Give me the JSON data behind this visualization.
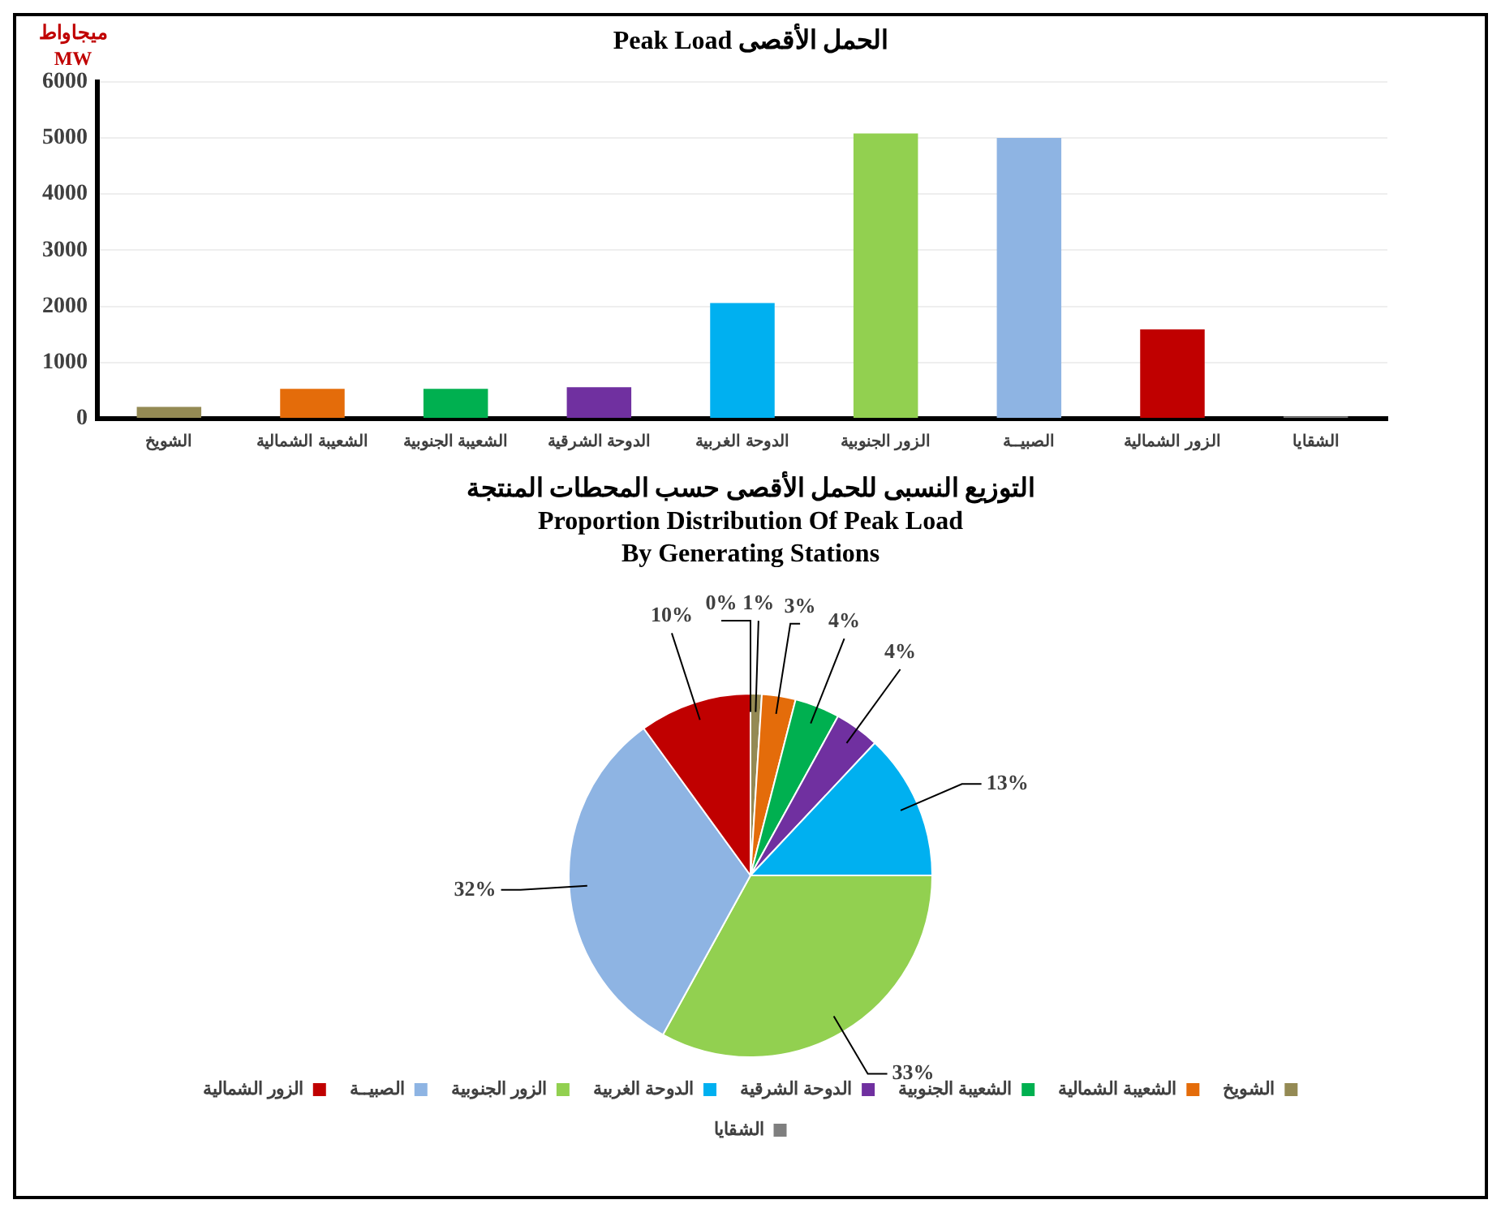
{
  "chart_data": [
    {
      "type": "bar",
      "title": "الحمل الأقصى   Peak Load",
      "ylabel": "ميجاواط MW",
      "categories": [
        "الشويخ",
        "الشعيبة الشمالية",
        "الشعيبة الجنوبية",
        "الدوحة الشرقية",
        "الدوحة الغربية",
        "الزور الجنوبية",
        "الصبيــة",
        "الزور الشمالية",
        "الشقايا"
      ],
      "values": [
        210,
        530,
        530,
        560,
        2060,
        5080,
        5000,
        1590,
        40
      ],
      "colors": [
        "#948a54",
        "#e46c0a",
        "#00b050",
        "#7030a0",
        "#00b0f0",
        "#92d050",
        "#8eb4e3",
        "#c00000",
        "#7f7f7f"
      ],
      "ylim": [
        0,
        6000
      ],
      "yticks": [
        0,
        1000,
        2000,
        3000,
        4000,
        5000,
        6000
      ],
      "grid": "y",
      "legend": false
    },
    {
      "type": "pie",
      "title": "التوزيع النسبى للحمل الأقصى حسب المحطات المنتجة\nProportion Distribution Of Peak Load\nBy Generating Stations",
      "categories": [
        "الشويخ",
        "الشعيبة الشمالية",
        "الشعيبة الجنوبية",
        "الدوحة الشرقية",
        "الدوحة الغربية",
        "الزور الجنوبية",
        "الصبيــة",
        "الزور الشمالية",
        "الشقايا"
      ],
      "values": [
        1,
        3,
        4,
        4,
        13,
        33,
        32,
        10,
        0
      ],
      "colors": [
        "#948a54",
        "#e46c0a",
        "#00b050",
        "#7030a0",
        "#00b0f0",
        "#92d050",
        "#8eb4e3",
        "#c00000",
        "#7f7f7f"
      ],
      "value_labels": [
        "1%",
        "3%",
        "4%",
        "4%",
        "13%",
        "33%",
        "32%",
        "10%",
        "0%"
      ],
      "legend": "bottom"
    }
  ]
}
